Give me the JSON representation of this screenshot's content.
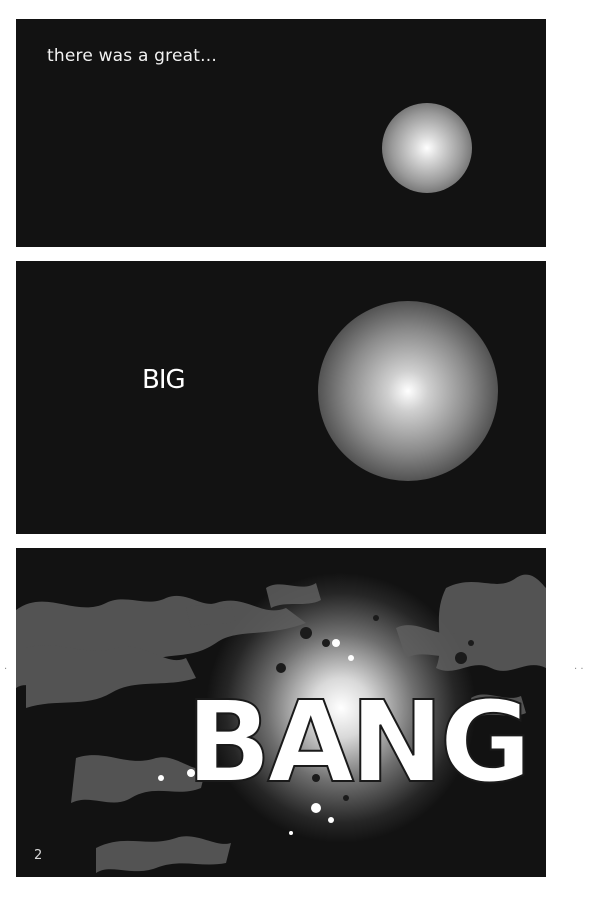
{
  "comic_page": {
    "caption_panel_1": "there was a great...",
    "text_panel_2": "BIG",
    "text_panel_3": "BANG",
    "page_number": "2",
    "colors": {
      "page_background": "#ffffff",
      "panel_background": "#121212",
      "lettering": "#ffffff",
      "splatter": "#6b6b6b"
    },
    "icons": [
      "glowing-orb-icon",
      "explosion-splatter-icon"
    ]
  }
}
